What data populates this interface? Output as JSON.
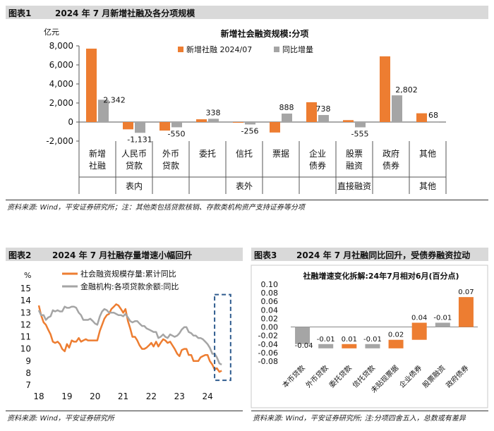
{
  "fig1": {
    "num": "图表1",
    "title": "2024 年 7 月新增社融及各分项规模",
    "source": "资料来源: Wind，平安证券研究所；注：其他类包括贷款核销、存款类机构资产支持证券等分项"
  },
  "fig2": {
    "num": "图表2",
    "title": "2024 年 7 月社融存量增速小幅回升",
    "source": "资料来源: Wind，平安证券研究所"
  },
  "fig3": {
    "num": "图表3",
    "title": "2024 年 7 月社融同比回升，受债券融资拉动",
    "source": "资料来源: Wind，平安证券研究所; 注:分项四舍五入，总数或有差异"
  },
  "colors": {
    "orange": "#ed7d31",
    "gray": "#a5a5a5",
    "dash_box": "#2e5b8e"
  },
  "chart_data": [
    {
      "type": "bar",
      "title": "新增社会融资规模:分项",
      "unit_label": "亿元",
      "ylim": [
        -2000,
        8000
      ],
      "yticks": [
        "8,000",
        "6,000",
        "4,000",
        "2,000",
        "0",
        "-2,000"
      ],
      "categories": [
        [
          "新增",
          "社融"
        ],
        [
          "人民币",
          "贷款"
        ],
        [
          "外币",
          "贷款"
        ],
        [
          "委托"
        ],
        [
          "信托"
        ],
        [
          "票据"
        ],
        [
          "企业",
          "债券"
        ],
        [
          "股票",
          "融资"
        ],
        [
          "政府",
          "债券"
        ],
        [
          "其他"
        ]
      ],
      "groups": [
        "表内",
        "表外",
        "直接融资",
        "其他"
      ],
      "series": [
        {
          "name": "新增社融 2024/07",
          "values": [
            7708,
            -767,
            -900,
            290,
            -30,
            -1100,
            2080,
            200,
            6900,
            920
          ]
        },
        {
          "name": "同比增量",
          "values": [
            2342,
            -1131,
            -550,
            338,
            -256,
            888,
            738,
            -555,
            2802,
            68
          ]
        }
      ],
      "data_labels": [
        "2,342",
        "-1,131",
        "-550",
        "338",
        "-256",
        "888",
        "738",
        "-555",
        "2,802",
        "68"
      ],
      "grid": false,
      "legend": "top"
    },
    {
      "type": "line",
      "unit_label": "%",
      "ylim": [
        7,
        15
      ],
      "yticks": [
        "15",
        "14",
        "13",
        "12",
        "11",
        "10",
        "9",
        "8",
        "7"
      ],
      "xlim": [
        2018,
        2024.9
      ],
      "xticks": [
        "18",
        "19",
        "20",
        "21",
        "22",
        "23",
        "24"
      ],
      "series": [
        {
          "name": "社会融资规模存量:累计同比",
          "x": [
            2018.0,
            2018.08,
            2018.17,
            2018.25,
            2018.33,
            2018.42,
            2018.5,
            2018.58,
            2018.67,
            2018.75,
            2018.83,
            2018.92,
            2019.0,
            2019.08,
            2019.17,
            2019.25,
            2019.33,
            2019.42,
            2019.5,
            2019.58,
            2019.67,
            2019.75,
            2019.83,
            2019.92,
            2020.0,
            2020.08,
            2020.17,
            2020.25,
            2020.33,
            2020.42,
            2020.5,
            2020.58,
            2020.67,
            2020.75,
            2020.83,
            2020.92,
            2021.0,
            2021.08,
            2021.17,
            2021.25,
            2021.33,
            2021.42,
            2021.5,
            2021.58,
            2021.67,
            2021.75,
            2021.83,
            2021.92,
            2022.0,
            2022.08,
            2022.17,
            2022.25,
            2022.33,
            2022.42,
            2022.5,
            2022.58,
            2022.67,
            2022.75,
            2022.83,
            2022.92,
            2023.0,
            2023.08,
            2023.17,
            2023.25,
            2023.33,
            2023.42,
            2023.5,
            2023.58,
            2023.67,
            2023.75,
            2023.83,
            2023.92,
            2024.0,
            2024.08,
            2024.17,
            2024.25,
            2024.33,
            2024.42,
            2024.5
          ],
          "values": [
            13.6,
            12.8,
            12.2,
            12.0,
            11.6,
            11.2,
            10.6,
            10.5,
            10.6,
            10.4,
            10.0,
            9.8,
            10.4,
            10.1,
            10.7,
            10.6,
            10.6,
            10.9,
            10.6,
            10.7,
            10.8,
            10.7,
            10.7,
            10.7,
            10.7,
            10.7,
            11.5,
            12.0,
            12.5,
            12.8,
            12.9,
            13.3,
            13.5,
            13.7,
            13.6,
            13.3,
            13.0,
            13.3,
            12.3,
            11.7,
            11.0,
            11.0,
            10.7,
            10.3,
            10.0,
            10.0,
            10.1,
            10.3,
            10.5,
            10.2,
            10.6,
            10.2,
            10.5,
            10.8,
            10.7,
            10.5,
            10.6,
            10.3,
            10.0,
            9.6,
            9.4,
            9.9,
            10.0,
            10.0,
            9.5,
            9.5,
            9.0,
            9.0,
            9.0,
            9.3,
            9.4,
            9.5,
            9.5,
            9.0,
            8.7,
            8.3,
            8.4,
            8.1,
            8.2
          ]
        },
        {
          "name": "金融机构:各项贷款余额:同比",
          "x": [
            2018.0,
            2018.08,
            2018.17,
            2018.25,
            2018.33,
            2018.42,
            2018.5,
            2018.58,
            2018.67,
            2018.75,
            2018.83,
            2018.92,
            2019.0,
            2019.08,
            2019.17,
            2019.25,
            2019.33,
            2019.42,
            2019.5,
            2019.58,
            2019.67,
            2019.75,
            2019.83,
            2019.92,
            2020.0,
            2020.08,
            2020.17,
            2020.25,
            2020.33,
            2020.42,
            2020.5,
            2020.58,
            2020.67,
            2020.75,
            2020.83,
            2020.92,
            2021.0,
            2021.08,
            2021.17,
            2021.25,
            2021.33,
            2021.42,
            2021.5,
            2021.58,
            2021.67,
            2021.75,
            2021.83,
            2021.92,
            2022.0,
            2022.08,
            2022.17,
            2022.25,
            2022.33,
            2022.42,
            2022.5,
            2022.58,
            2022.67,
            2022.75,
            2022.83,
            2022.92,
            2023.0,
            2023.08,
            2023.17,
            2023.25,
            2023.33,
            2023.42,
            2023.5,
            2023.58,
            2023.67,
            2023.75,
            2023.83,
            2023.92,
            2024.0,
            2024.08,
            2024.17,
            2024.25,
            2024.33,
            2024.42,
            2024.5
          ],
          "values": [
            13.2,
            12.8,
            12.8,
            12.4,
            12.6,
            12.7,
            13.2,
            13.1,
            13.2,
            13.1,
            13.1,
            13.5,
            13.4,
            13.4,
            13.5,
            13.5,
            13.4,
            13.0,
            12.8,
            12.4,
            12.4,
            12.4,
            12.5,
            12.3,
            12.1,
            12.0,
            12.7,
            13.1,
            13.3,
            13.2,
            13.0,
            13.0,
            13.0,
            12.9,
            12.8,
            12.8,
            12.7,
            12.9,
            12.6,
            12.3,
            12.2,
            12.3,
            12.3,
            12.1,
            11.9,
            11.9,
            11.7,
            11.6,
            11.5,
            11.4,
            11.4,
            10.9,
            11.0,
            11.2,
            11.0,
            10.9,
            11.2,
            11.1,
            11.0,
            11.1,
            11.3,
            11.6,
            11.8,
            11.8,
            11.4,
            11.3,
            11.1,
            11.1,
            10.9,
            10.9,
            10.8,
            10.6,
            10.4,
            10.1,
            9.6,
            9.6,
            9.3,
            8.8,
            8.7
          ]
        }
      ],
      "grid": false,
      "legend": "top-left"
    },
    {
      "type": "bar",
      "title": "社融增速变化拆解:24年7月相对6月(百分点)",
      "ylim": [
        -0.08,
        0.1
      ],
      "yticks": [
        "0.10",
        "0.08",
        "0.06",
        "0.04",
        "0.02",
        "0.00",
        "-0.02",
        "-0.04",
        "-0.06",
        "-0.08"
      ],
      "categories": [
        "本币贷款",
        "外币贷款",
        "委托贷款",
        "信托贷款",
        "未贴现票据",
        "企业债券",
        "股票融资",
        "政府债券"
      ],
      "start": [
        0.0,
        -0.04,
        -0.05,
        -0.04,
        -0.05,
        -0.03,
        0.01,
        0.0
      ],
      "values": [
        -0.04,
        -0.01,
        0.01,
        -0.01,
        0.02,
        0.04,
        -0.01,
        0.07
      ],
      "bar_colors": [
        "#a5a5a5",
        "#a5a5a5",
        "#ed7d31",
        "#a5a5a5",
        "#ed7d31",
        "#ed7d31",
        "#a5a5a5",
        "#ed7d31"
      ],
      "data_labels": [
        "-0.04",
        "-0.01",
        "0.01",
        "-0.01",
        "0.02",
        "0.04",
        "-0.01",
        "0.07"
      ],
      "grid": false
    }
  ]
}
